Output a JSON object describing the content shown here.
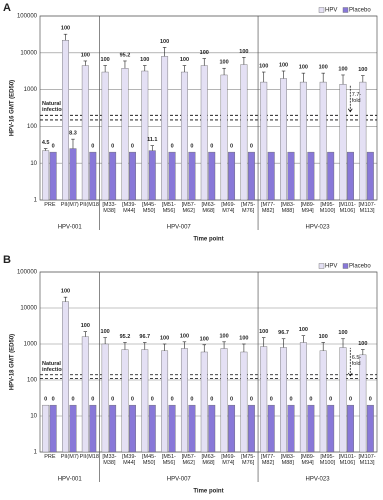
{
  "chart_data": [
    {
      "type": "bar",
      "panel": "A",
      "log_scale": true,
      "grid": true,
      "y_label": "HPV-16 GMT (ED50)",
      "x_label": "Time point",
      "categories": [
        "PRE",
        "PII(M7)",
        "PII(M18)",
        "[M33-M38]",
        "[M39-M44]",
        "[M45-M50]",
        "[M51-M56]",
        "[M57-M62]",
        "[M63-M68]",
        "[M69-M74]",
        "[M75-M76]",
        "[M77-M82]",
        "[M83-M88]",
        "[M89-M94]",
        "[M95-M100]",
        "[M101-M106]",
        "[M107-M113]"
      ],
      "groups": [
        {
          "name": "HPV-001",
          "start": 0,
          "end": 2
        },
        {
          "name": "HPV-007",
          "start": 3,
          "end": 10
        },
        {
          "name": "HPV-023",
          "start": 11,
          "end": 16
        }
      ],
      "series": [
        {
          "name": "HPV",
          "color": "#e4e0f4",
          "values": [
            22,
            22000,
            4500,
            3000,
            3800,
            3200,
            8000,
            3000,
            4500,
            2500,
            4800,
            1600,
            2000,
            1600,
            1600,
            1400,
            1600
          ],
          "upper": [
            25,
            32000,
            6000,
            4500,
            6000,
            4500,
            14000,
            4500,
            7000,
            3800,
            7500,
            3000,
            3200,
            2800,
            2800,
            2500,
            2400
          ],
          "seropositivity": [
            4.5,
            100,
            100,
            100,
            95.2,
            100,
            100,
            100,
            100,
            100,
            100,
            100,
            100,
            100,
            100,
            100,
            100
          ]
        },
        {
          "name": "Placebo",
          "color": "#8878d8",
          "values": [
            20,
            25,
            20,
            20,
            20,
            22,
            20,
            20,
            20,
            20,
            20,
            20,
            20,
            20,
            20,
            20,
            20
          ],
          "upper": [
            null,
            45,
            null,
            null,
            null,
            30,
            null,
            null,
            null,
            null,
            null,
            null,
            null,
            null,
            null,
            null,
            null
          ],
          "seropositivity": [
            0,
            8.3,
            0,
            0,
            0,
            11.1,
            0,
            0,
            0,
            0,
            0,
            null,
            null,
            null,
            null,
            null,
            null
          ]
        }
      ],
      "natural_infection": {
        "text": "Natural infection",
        "values": [
          150,
          200
        ]
      },
      "fold": {
        "text": "7.7-fold",
        "from": 250,
        "to": 1300
      },
      "ylim": [
        1,
        100000
      ],
      "yticks": [
        1,
        10,
        100,
        1000,
        10000,
        100000
      ]
    },
    {
      "type": "bar",
      "panel": "B",
      "log_scale": true,
      "grid": true,
      "y_label": "HPV-18 GMT (ED50)",
      "x_label": "Time point",
      "categories": [
        "PRE",
        "PII(M7)",
        "PII(M18)",
        "[M33-M38]",
        "[M39-M44]",
        "[M45-M50]",
        "[M51-M56]",
        "[M57-M62]",
        "[M63-M68]",
        "[M69-M74]",
        "[M75-M76]",
        "[M77-M82]",
        "[M83-M88]",
        "[M89-M94]",
        "[M95-M100]",
        "[M101-M106]",
        "[M107-M113]"
      ],
      "groups": [
        {
          "name": "HPV-001",
          "start": 0,
          "end": 2
        },
        {
          "name": "HPV-007",
          "start": 3,
          "end": 10
        },
        {
          "name": "HPV-023",
          "start": 11,
          "end": 16
        }
      ],
      "series": [
        {
          "name": "HPV",
          "color": "#e4e0f4",
          "values": [
            20,
            15000,
            1600,
            1000,
            700,
            700,
            650,
            750,
            600,
            750,
            600,
            850,
            800,
            1100,
            650,
            800,
            500
          ],
          "upper": [
            null,
            20000,
            2200,
            1500,
            1100,
            1100,
            1000,
            1150,
            950,
            1150,
            1000,
            1500,
            1400,
            1700,
            1100,
            1400,
            700
          ],
          "seropositivity": [
            0,
            100,
            100,
            100,
            95.2,
            96.7,
            100,
            100,
            100,
            100,
            100,
            100,
            96.7,
            100,
            100,
            100,
            100
          ]
        },
        {
          "name": "Placebo",
          "color": "#8878d8",
          "values": [
            20,
            20,
            20,
            20,
            20,
            20,
            20,
            20,
            20,
            20,
            20,
            20,
            20,
            20,
            20,
            20,
            20
          ],
          "upper": [
            null,
            null,
            null,
            null,
            null,
            null,
            null,
            null,
            null,
            null,
            null,
            null,
            null,
            null,
            null,
            null,
            null
          ],
          "seropositivity": [
            0,
            0,
            0,
            0,
            0,
            0,
            0,
            0,
            0,
            0,
            0,
            0,
            0,
            0,
            0,
            0,
            0
          ]
        }
      ],
      "natural_infection": {
        "text": "Natural infection",
        "values": [
          110,
          140
        ]
      },
      "fold": {
        "text": "6.5-fold",
        "from": 130,
        "to": 780
      },
      "ylim": [
        1,
        100000
      ],
      "yticks": [
        1,
        10,
        100,
        1000,
        10000,
        100000
      ]
    }
  ]
}
